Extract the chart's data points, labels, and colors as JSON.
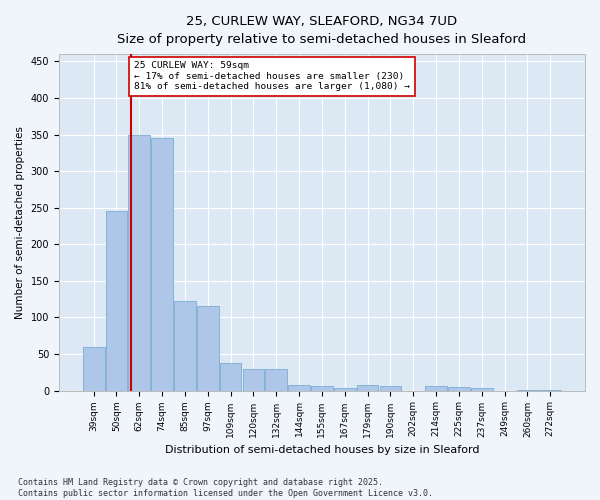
{
  "title1": "25, CURLEW WAY, SLEAFORD, NG34 7UD",
  "title2": "Size of property relative to semi-detached houses in Sleaford",
  "xlabel": "Distribution of semi-detached houses by size in Sleaford",
  "ylabel": "Number of semi-detached properties",
  "categories": [
    "39sqm",
    "50sqm",
    "62sqm",
    "74sqm",
    "85sqm",
    "97sqm",
    "109sqm",
    "120sqm",
    "132sqm",
    "144sqm",
    "155sqm",
    "167sqm",
    "179sqm",
    "190sqm",
    "202sqm",
    "214sqm",
    "225sqm",
    "237sqm",
    "249sqm",
    "260sqm",
    "272sqm"
  ],
  "values": [
    60,
    245,
    350,
    345,
    122,
    115,
    38,
    30,
    30,
    8,
    6,
    4,
    7,
    6,
    0,
    6,
    5,
    4,
    0,
    1,
    1
  ],
  "bar_color": "#aec6e8",
  "bar_edge_color": "#7aadd4",
  "bg_color": "#dde8f5",
  "grid_color": "#ffffff",
  "fig_color": "#f0f4fb",
  "vline_x": 1.62,
  "vline_color": "#cc0000",
  "annotation_text": "25 CURLEW WAY: 59sqm\n← 17% of semi-detached houses are smaller (230)\n81% of semi-detached houses are larger (1,080) →",
  "annotation_box_color": "#ffffff",
  "annotation_box_edge": "#cc0000",
  "ylim": [
    0,
    460
  ],
  "yticks": [
    0,
    50,
    100,
    150,
    200,
    250,
    300,
    350,
    400,
    450
  ],
  "footnote": "Contains HM Land Registry data © Crown copyright and database right 2025.\nContains public sector information licensed under the Open Government Licence v3.0."
}
